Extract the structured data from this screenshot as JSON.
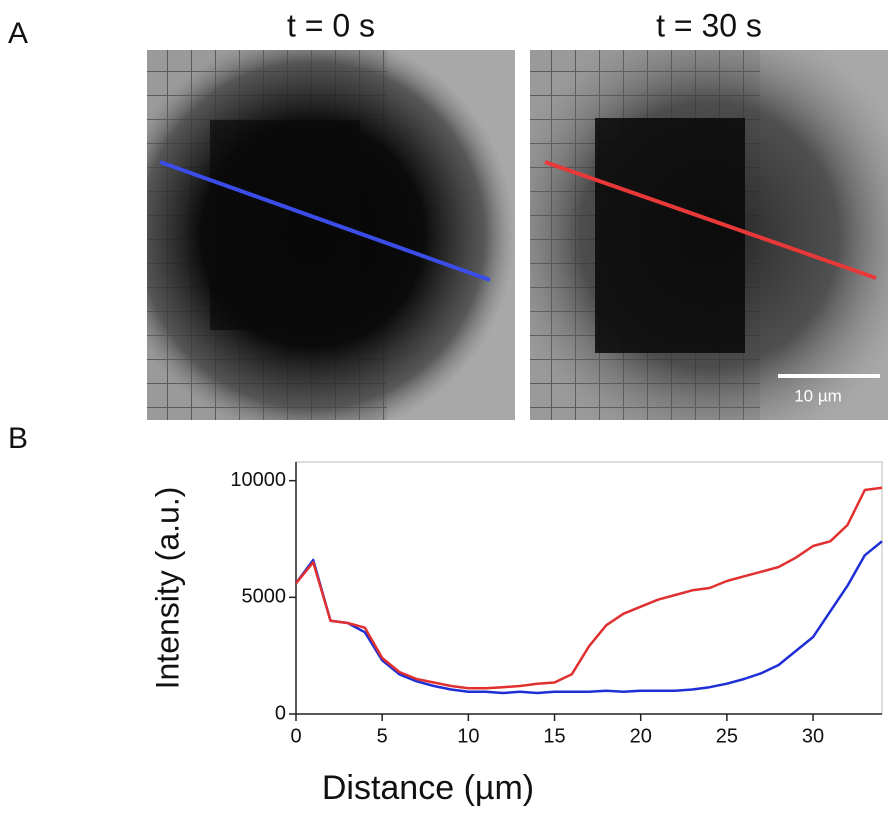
{
  "figure": {
    "panel_a_label": "A",
    "panel_b_label": "B",
    "images": [
      {
        "title": "t = 0 s"
      },
      {
        "title": "t = 30 s"
      }
    ],
    "scale_bar": "10 µm"
  },
  "chart_data": {
    "type": "line",
    "xlabel": "Distance (µm)",
    "ylabel": "Intensity (a.u.)",
    "x": [
      0,
      1,
      2,
      3,
      4,
      5,
      6,
      7,
      8,
      9,
      10,
      11,
      12,
      13,
      14,
      15,
      16,
      17,
      18,
      19,
      20,
      21,
      22,
      23,
      24,
      25,
      26,
      27,
      28,
      29,
      30,
      31,
      32,
      33,
      34
    ],
    "series": [
      {
        "color": "#1f2fd6",
        "values": [
          5600,
          6600,
          4000,
          3900,
          3500,
          2300,
          1700,
          1400,
          1200,
          1050,
          950,
          950,
          900,
          950,
          900,
          950,
          950,
          950,
          1000,
          950,
          1000,
          1000,
          1000,
          1050,
          1150,
          1300,
          1500,
          1750,
          2100,
          2700,
          3300,
          4400,
          5500,
          6800,
          7400
        ]
      },
      {
        "color": "#e03030",
        "values": [
          5600,
          6500,
          4000,
          3900,
          3700,
          2400,
          1800,
          1500,
          1350,
          1200,
          1100,
          1100,
          1150,
          1200,
          1300,
          1350,
          1700,
          2900,
          3800,
          4300,
          4600,
          4900,
          5100,
          5300,
          5400,
          5700,
          5900,
          6100,
          6300,
          6700,
          7200,
          7400,
          8100,
          9600,
          9700
        ]
      }
    ],
    "xlim": [
      0,
      34
    ],
    "ylim": [
      0,
      10800
    ],
    "xticks": [
      0,
      5,
      10,
      15,
      20,
      25,
      30
    ],
    "yticks": [
      0,
      5000,
      10000
    ]
  }
}
